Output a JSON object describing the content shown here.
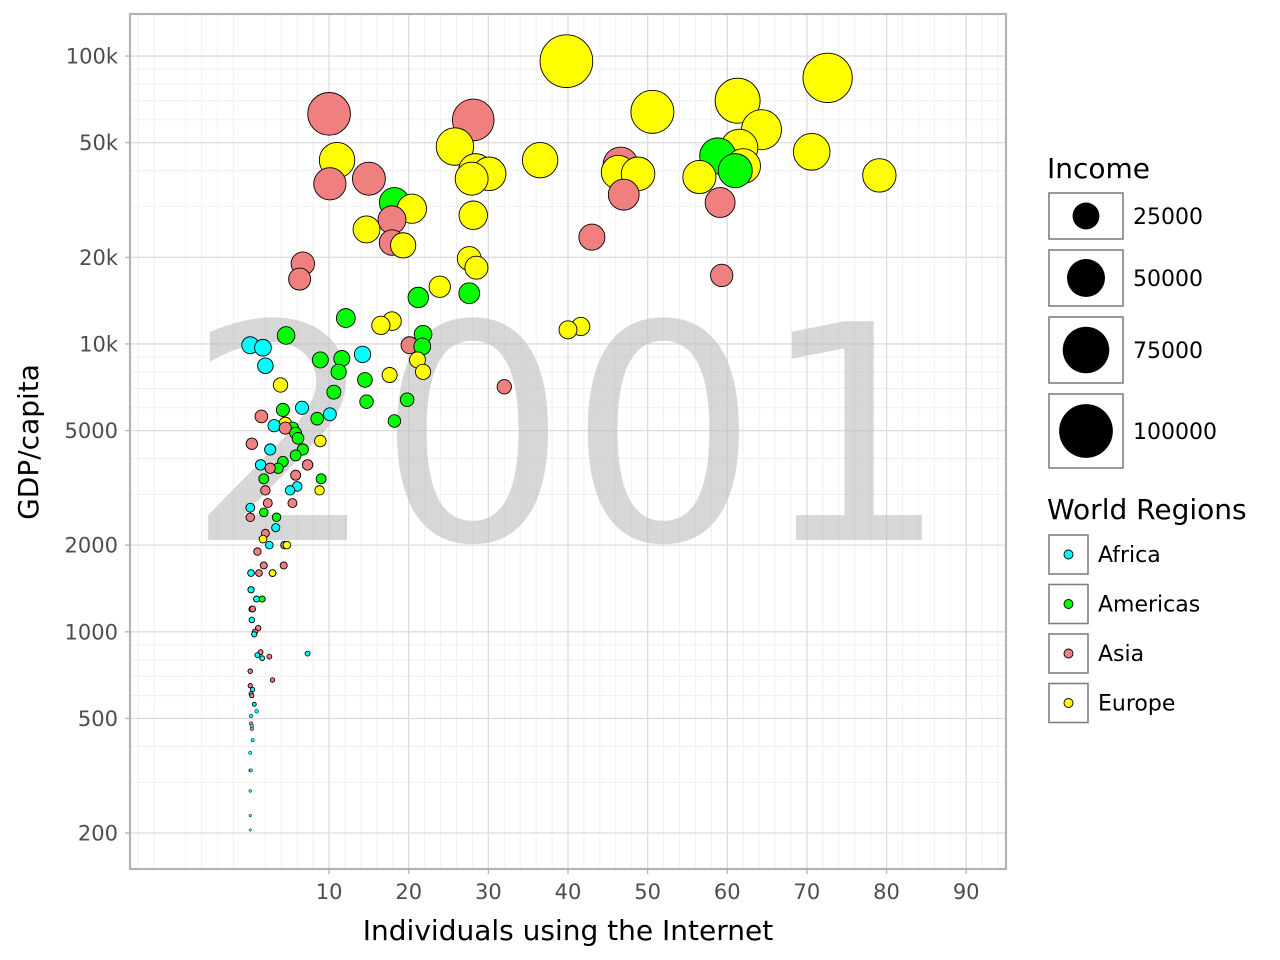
{
  "chart_data": {
    "type": "scatter",
    "title": "",
    "year_label": "2001",
    "xlabel": "Individuals using the Internet",
    "ylabel": "GDP/capita",
    "x_scale": "linear",
    "y_scale": "log",
    "xlim": [
      -15,
      95
    ],
    "ylim": [
      150,
      140000
    ],
    "x_ticks": [
      10,
      20,
      30,
      40,
      50,
      60,
      70,
      80,
      90
    ],
    "x_tick_labels": [
      "10",
      "20",
      "30",
      "40",
      "50",
      "60",
      "70",
      "80",
      "90"
    ],
    "y_ticks": [
      200,
      500,
      1000,
      2000,
      5000,
      10000,
      20000,
      50000,
      100000
    ],
    "y_tick_labels": [
      "200",
      "500",
      "1000",
      "2000",
      "5000",
      "10k",
      "20k",
      "50k",
      "100k"
    ],
    "grid": true,
    "size_legend": {
      "title": "Income",
      "entries": [
        {
          "label": "25000",
          "value": 25000
        },
        {
          "label": "50000",
          "value": 50000
        },
        {
          "label": "75000",
          "value": 75000
        },
        {
          "label": "100000",
          "value": 100000
        }
      ]
    },
    "color_legend": {
      "title": "World Regions",
      "entries": [
        {
          "label": "Africa",
          "color": "#00ffff"
        },
        {
          "label": "Americas",
          "color": "#00ff00"
        },
        {
          "label": "Asia",
          "color": "#f08080"
        },
        {
          "label": "Europe",
          "color": "#ffff00"
        }
      ]
    },
    "legend_position": "right",
    "series": [
      {
        "name": "Africa",
        "color": "#00ffff",
        "points": [
          {
            "x": 0.1,
            "y": 9900
          },
          {
            "x": 1.7,
            "y": 9700
          },
          {
            "x": 2.0,
            "y": 8400
          },
          {
            "x": 14.2,
            "y": 9200
          },
          {
            "x": 6.6,
            "y": 6000
          },
          {
            "x": 10.1,
            "y": 5700
          },
          {
            "x": 3.1,
            "y": 5200
          },
          {
            "x": 5.1,
            "y": 3100
          },
          {
            "x": 1.4,
            "y": 3800
          },
          {
            "x": 2.6,
            "y": 4300
          },
          {
            "x": 6.0,
            "y": 3200
          },
          {
            "x": 3.3,
            "y": 2300
          },
          {
            "x": 0.1,
            "y": 2700
          },
          {
            "x": 2.5,
            "y": 2000
          },
          {
            "x": 0.2,
            "y": 1600
          },
          {
            "x": 0.2,
            "y": 1400
          },
          {
            "x": 0.9,
            "y": 1300
          },
          {
            "x": 0.3,
            "y": 1200
          },
          {
            "x": 0.3,
            "y": 1100
          },
          {
            "x": 0.6,
            "y": 980
          },
          {
            "x": 1.0,
            "y": 830
          },
          {
            "x": 1.6,
            "y": 810
          },
          {
            "x": 7.3,
            "y": 840
          },
          {
            "x": 0.4,
            "y": 630
          },
          {
            "x": 0.2,
            "y": 610
          },
          {
            "x": 0.6,
            "y": 560
          },
          {
            "x": 0.9,
            "y": 530
          },
          {
            "x": 0.2,
            "y": 510
          },
          {
            "x": 0.3,
            "y": 470
          },
          {
            "x": 0.4,
            "y": 420
          },
          {
            "x": 0.1,
            "y": 380
          },
          {
            "x": 0.1,
            "y": 330
          },
          {
            "x": 0.2,
            "y": 330
          },
          {
            "x": 0.1,
            "y": 280
          },
          {
            "x": 0.1,
            "y": 230
          },
          {
            "x": 0.1,
            "y": 205
          }
        ]
      },
      {
        "name": "Americas",
        "color": "#00ff00",
        "points": [
          {
            "x": 58.8,
            "y": 45000
          },
          {
            "x": 61.0,
            "y": 40000
          },
          {
            "x": 18.2,
            "y": 31000
          },
          {
            "x": 27.6,
            "y": 15000
          },
          {
            "x": 21.2,
            "y": 14500
          },
          {
            "x": 12.1,
            "y": 12300
          },
          {
            "x": 4.6,
            "y": 10700
          },
          {
            "x": 21.8,
            "y": 10800
          },
          {
            "x": 21.7,
            "y": 9800
          },
          {
            "x": 11.6,
            "y": 8900
          },
          {
            "x": 8.9,
            "y": 8800
          },
          {
            "x": 11.2,
            "y": 8000
          },
          {
            "x": 14.5,
            "y": 7500
          },
          {
            "x": 10.6,
            "y": 6800
          },
          {
            "x": 19.8,
            "y": 6400
          },
          {
            "x": 14.7,
            "y": 6300
          },
          {
            "x": 4.2,
            "y": 5900
          },
          {
            "x": 8.5,
            "y": 5500
          },
          {
            "x": 18.2,
            "y": 5400
          },
          {
            "x": 5.4,
            "y": 5100
          },
          {
            "x": 5.8,
            "y": 4900
          },
          {
            "x": 6.1,
            "y": 4700
          },
          {
            "x": 6.7,
            "y": 4300
          },
          {
            "x": 5.8,
            "y": 4100
          },
          {
            "x": 4.2,
            "y": 3900
          },
          {
            "x": 3.6,
            "y": 3700
          },
          {
            "x": 9.0,
            "y": 3400
          },
          {
            "x": 1.8,
            "y": 3400
          },
          {
            "x": 3.4,
            "y": 2500
          },
          {
            "x": 1.8,
            "y": 2600
          },
          {
            "x": 1.6,
            "y": 1300
          }
        ]
      },
      {
        "name": "Asia",
        "color": "#f08080",
        "points": [
          {
            "x": 10.0,
            "y": 63000
          },
          {
            "x": 28.1,
            "y": 60000
          },
          {
            "x": 46.6,
            "y": 42000
          },
          {
            "x": 47.0,
            "y": 33000
          },
          {
            "x": 15.0,
            "y": 37500
          },
          {
            "x": 10.1,
            "y": 36000
          },
          {
            "x": 17.9,
            "y": 27000
          },
          {
            "x": 17.9,
            "y": 22500
          },
          {
            "x": 59.1,
            "y": 31000
          },
          {
            "x": 43.0,
            "y": 23500
          },
          {
            "x": 6.7,
            "y": 19000
          },
          {
            "x": 6.3,
            "y": 16800
          },
          {
            "x": 59.3,
            "y": 17300
          },
          {
            "x": 32.0,
            "y": 7100
          },
          {
            "x": 20.1,
            "y": 9900
          },
          {
            "x": 1.5,
            "y": 5600
          },
          {
            "x": 4.5,
            "y": 5100
          },
          {
            "x": 7.3,
            "y": 3800
          },
          {
            "x": 5.8,
            "y": 3500
          },
          {
            "x": 2.6,
            "y": 3700
          },
          {
            "x": 2.0,
            "y": 3100
          },
          {
            "x": 0.3,
            "y": 4500
          },
          {
            "x": 2.3,
            "y": 2800
          },
          {
            "x": 5.4,
            "y": 2800
          },
          {
            "x": 0.1,
            "y": 2500
          },
          {
            "x": 2.0,
            "y": 2200
          },
          {
            "x": 4.4,
            "y": 2000
          },
          {
            "x": 1.0,
            "y": 1900
          },
          {
            "x": 1.8,
            "y": 1700
          },
          {
            "x": 4.3,
            "y": 1700
          },
          {
            "x": 1.2,
            "y": 1600
          },
          {
            "x": 2.9,
            "y": 1600
          },
          {
            "x": 0.4,
            "y": 1200
          },
          {
            "x": 1.1,
            "y": 1030
          },
          {
            "x": 0.7,
            "y": 1000
          },
          {
            "x": 1.4,
            "y": 850
          },
          {
            "x": 2.5,
            "y": 820
          },
          {
            "x": 0.1,
            "y": 730
          },
          {
            "x": 2.9,
            "y": 680
          },
          {
            "x": 0.1,
            "y": 650
          },
          {
            "x": 0.3,
            "y": 600
          },
          {
            "x": 0.2,
            "y": 480
          },
          {
            "x": 0.3,
            "y": 460
          }
        ]
      },
      {
        "name": "Europe",
        "color": "#ffff00",
        "points": [
          {
            "x": 39.8,
            "y": 96000
          },
          {
            "x": 72.6,
            "y": 84000
          },
          {
            "x": 61.3,
            "y": 70000
          },
          {
            "x": 50.6,
            "y": 64000
          },
          {
            "x": 64.3,
            "y": 55500
          },
          {
            "x": 25.8,
            "y": 48500
          },
          {
            "x": 61.5,
            "y": 48000
          },
          {
            "x": 70.6,
            "y": 46500
          },
          {
            "x": 11.0,
            "y": 43500
          },
          {
            "x": 36.5,
            "y": 43500
          },
          {
            "x": 28.4,
            "y": 40000
          },
          {
            "x": 30.1,
            "y": 39000
          },
          {
            "x": 46.3,
            "y": 39500
          },
          {
            "x": 48.8,
            "y": 39000
          },
          {
            "x": 62.0,
            "y": 41500
          },
          {
            "x": 79.1,
            "y": 38500
          },
          {
            "x": 56.5,
            "y": 38000
          },
          {
            "x": 27.9,
            "y": 37500
          },
          {
            "x": 20.4,
            "y": 29500
          },
          {
            "x": 28.1,
            "y": 28000
          },
          {
            "x": 14.7,
            "y": 25000
          },
          {
            "x": 19.3,
            "y": 22000
          },
          {
            "x": 27.6,
            "y": 19800
          },
          {
            "x": 28.5,
            "y": 18400
          },
          {
            "x": 23.9,
            "y": 15800
          },
          {
            "x": 17.9,
            "y": 12000
          },
          {
            "x": 16.5,
            "y": 11600
          },
          {
            "x": 40.0,
            "y": 11200
          },
          {
            "x": 41.6,
            "y": 11500
          },
          {
            "x": 21.1,
            "y": 8800
          },
          {
            "x": 21.8,
            "y": 8000
          },
          {
            "x": 17.6,
            "y": 7800
          },
          {
            "x": 3.9,
            "y": 7200
          },
          {
            "x": 8.9,
            "y": 4600
          },
          {
            "x": 4.5,
            "y": 5300
          },
          {
            "x": 8.8,
            "y": 3100
          },
          {
            "x": 1.7,
            "y": 2100
          },
          {
            "x": 4.7,
            "y": 2000
          },
          {
            "x": 2.9,
            "y": 1600
          }
        ]
      }
    ]
  }
}
